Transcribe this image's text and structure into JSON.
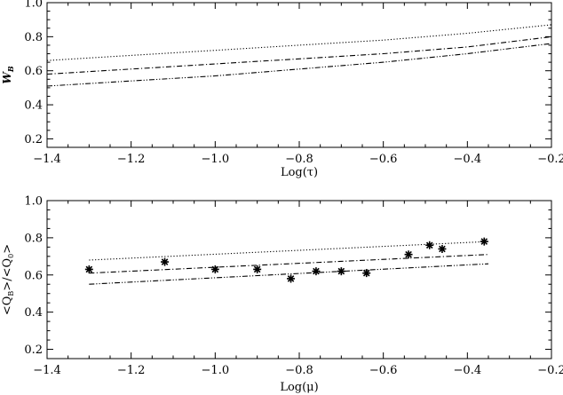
{
  "chart_data": [
    {
      "type": "line",
      "xlabel": "Log(τ)",
      "ylabel": "W",
      "ylabel_sub": "B",
      "xlim": [
        -1.4,
        -0.2
      ],
      "ylim": [
        0.15,
        1.0
      ],
      "xticks": [
        "−1.4",
        "−1.2",
        "−1.0",
        "−0.8",
        "−0.6",
        "−0.4",
        "−0.2"
      ],
      "xtick_values": [
        -1.4,
        -1.2,
        -1.0,
        -0.8,
        -0.6,
        -0.4,
        -0.2
      ],
      "yticks": [
        "0.2",
        "0.4",
        "0.6",
        "0.8",
        "1.0"
      ],
      "ytick_values": [
        0.2,
        0.4,
        0.6,
        0.8,
        1.0
      ],
      "series": [
        {
          "style": "dotted",
          "x": [
            -1.4,
            -1.2,
            -1.0,
            -0.8,
            -0.6,
            -0.4,
            -0.2
          ],
          "y": [
            0.66,
            0.69,
            0.72,
            0.75,
            0.78,
            0.82,
            0.87
          ]
        },
        {
          "style": "dashdot",
          "x": [
            -1.4,
            -1.2,
            -1.0,
            -0.8,
            -0.6,
            -0.4,
            -0.2
          ],
          "y": [
            0.58,
            0.61,
            0.64,
            0.67,
            0.7,
            0.74,
            0.8
          ]
        },
        {
          "style": "dashdotdot",
          "x": [
            -1.4,
            -1.2,
            -1.0,
            -0.8,
            -0.6,
            -0.4,
            -0.2
          ],
          "y": [
            0.51,
            0.54,
            0.57,
            0.61,
            0.65,
            0.7,
            0.76
          ]
        }
      ]
    },
    {
      "type": "scatter",
      "xlabel": "Log(μ)",
      "ylabel": "<Q_B>/<Q_0>",
      "xlim": [
        -1.4,
        -0.2
      ],
      "ylim": [
        0.15,
        1.0
      ],
      "xticks": [
        "−1.4",
        "−1.2",
        "−1.0",
        "−0.8",
        "−0.6",
        "−0.4",
        "−0.2"
      ],
      "xtick_values": [
        -1.4,
        -1.2,
        -1.0,
        -0.8,
        -0.6,
        -0.4,
        -0.2
      ],
      "yticks": [
        "0.2",
        "0.4",
        "0.6",
        "0.8",
        "1.0"
      ],
      "ytick_values": [
        0.2,
        0.4,
        0.6,
        0.8,
        1.0
      ],
      "series": [
        {
          "style": "dotted",
          "x": [
            -1.3,
            -0.35
          ],
          "y": [
            0.68,
            0.78
          ]
        },
        {
          "style": "dashdot",
          "x": [
            -1.3,
            -0.35
          ],
          "y": [
            0.61,
            0.71
          ]
        },
        {
          "style": "dashdotdot",
          "x": [
            -1.3,
            -0.35
          ],
          "y": [
            0.55,
            0.66
          ]
        }
      ],
      "points": {
        "marker": "asterisk",
        "x": [
          -1.3,
          -1.12,
          -1.0,
          -0.9,
          -0.82,
          -0.76,
          -0.7,
          -0.64,
          -0.54,
          -0.49,
          -0.46,
          -0.36
        ],
        "y": [
          0.63,
          0.67,
          0.63,
          0.63,
          0.58,
          0.62,
          0.62,
          0.61,
          0.71,
          0.76,
          0.74,
          0.78
        ]
      }
    }
  ]
}
